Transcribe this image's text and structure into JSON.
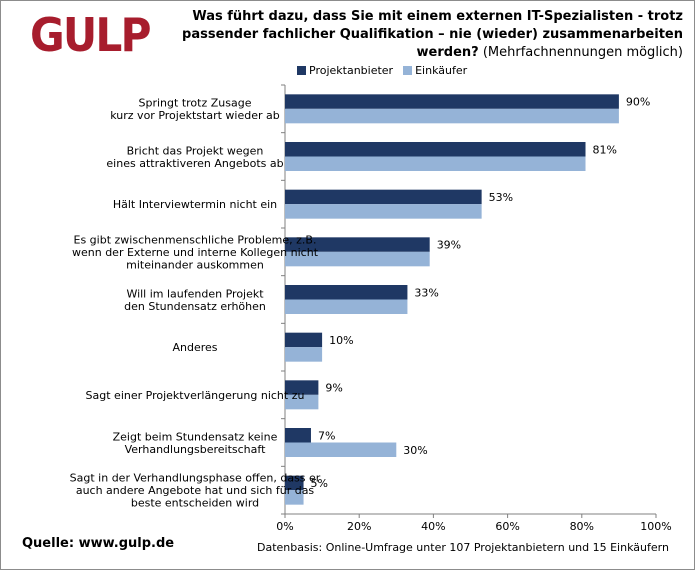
{
  "logo_text": "GULP",
  "title": {
    "question": "Was führt dazu, dass Sie mit einem externen IT-Spezialisten  - trotz passender fachlicher Qualifikation – nie (wieder) zusammenarbeiten werden?",
    "note": "(Mehrfachnennungen möglich)"
  },
  "footer": {
    "source": "Quelle: www.gulp.de",
    "basis": "Datenbasis: Online-Umfrage unter 107 Projektanbietern und 15 Einkäufern"
  },
  "colors": {
    "projektanbieter": "#1f3864",
    "einkaeufer": "#95b3d7",
    "logo": "#a71d2d"
  },
  "chart_data": {
    "type": "bar",
    "orientation": "horizontal",
    "categories": [
      [
        "Springt trotz  Zusage",
        "kurz vor Projektstart wieder ab"
      ],
      [
        "Bricht das Projekt wegen",
        "eines attraktiveren Angebots ab"
      ],
      [
        "Hält Interviewtermin nicht ein"
      ],
      [
        "Es gibt zwischenmenschliche Probleme, z.B.",
        "wenn der Externe und interne Kollegen nicht",
        "miteinander auskommen"
      ],
      [
        "Will im laufenden Projekt",
        "den Stundensatz  erhöhen"
      ],
      [
        "Anderes"
      ],
      [
        "Sagt einer Projektverlängerung nicht zu"
      ],
      [
        "Zeigt beim Stundensatz keine",
        "Verhandlungsbereitschaft"
      ],
      [
        "Sagt in der Verhandlungsphase offen, dass er",
        "auch andere Angebote hat und sich für das",
        "beste entscheiden wird"
      ]
    ],
    "series": [
      {
        "name": "Projektanbieter",
        "values": [
          90,
          81,
          53,
          39,
          33,
          10,
          9,
          7,
          5
        ],
        "labels": [
          "90%",
          "81%",
          "53%",
          "39%",
          "33%",
          "10%",
          "9%",
          "7%",
          "5%"
        ]
      },
      {
        "name": "Einkäufer",
        "values": [
          90,
          81,
          53,
          39,
          33,
          10,
          9,
          30,
          5
        ],
        "labels": [
          "",
          "",
          "",
          "",
          "",
          "",
          "",
          "30%",
          ""
        ]
      }
    ],
    "xlim": [
      0,
      100
    ],
    "xticks": [
      "0%",
      "20%",
      "40%",
      "60%",
      "80%",
      "100%"
    ],
    "grid": false,
    "legend_position": "top"
  }
}
